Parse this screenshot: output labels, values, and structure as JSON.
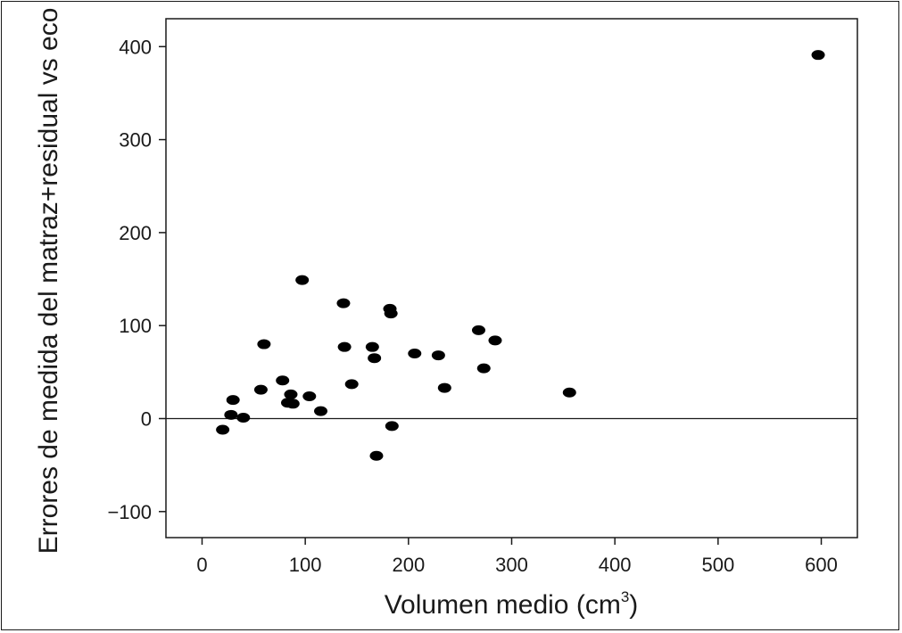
{
  "chart_data": {
    "type": "scatter",
    "title": "",
    "xlabel": "Volumen medio (cm",
    "xlabel_sup": "3",
    "xlabel_end": ")",
    "ylabel": "Errores de medida del matraz+residual vs eco",
    "xlim": [
      -35,
      635
    ],
    "ylim": [
      -128,
      430
    ],
    "xticks": [
      0,
      100,
      200,
      300,
      400,
      500,
      600
    ],
    "yticks": [
      -100,
      0,
      100,
      200,
      300,
      400
    ],
    "ytick_labels": [
      "−100",
      "0",
      "100",
      "200",
      "300",
      "400"
    ],
    "reference_line_y": 0,
    "grid": false,
    "point_color": "#000000",
    "points": [
      {
        "x": 20,
        "y": -12
      },
      {
        "x": 28,
        "y": 4
      },
      {
        "x": 30,
        "y": 20
      },
      {
        "x": 40,
        "y": 1
      },
      {
        "x": 57,
        "y": 31
      },
      {
        "x": 60,
        "y": 80
      },
      {
        "x": 78,
        "y": 41
      },
      {
        "x": 83,
        "y": 17
      },
      {
        "x": 86,
        "y": 26
      },
      {
        "x": 88,
        "y": 16
      },
      {
        "x": 97,
        "y": 149
      },
      {
        "x": 104,
        "y": 24
      },
      {
        "x": 115,
        "y": 8
      },
      {
        "x": 137,
        "y": 124
      },
      {
        "x": 138,
        "y": 77
      },
      {
        "x": 145,
        "y": 37
      },
      {
        "x": 165,
        "y": 77
      },
      {
        "x": 167,
        "y": 65
      },
      {
        "x": 169,
        "y": -40
      },
      {
        "x": 182,
        "y": 118
      },
      {
        "x": 183,
        "y": 113
      },
      {
        "x": 184,
        "y": -8
      },
      {
        "x": 206,
        "y": 70
      },
      {
        "x": 229,
        "y": 68
      },
      {
        "x": 235,
        "y": 33
      },
      {
        "x": 268,
        "y": 95
      },
      {
        "x": 273,
        "y": 54
      },
      {
        "x": 284,
        "y": 84
      },
      {
        "x": 356,
        "y": 28
      },
      {
        "x": 597,
        "y": 391
      }
    ]
  }
}
